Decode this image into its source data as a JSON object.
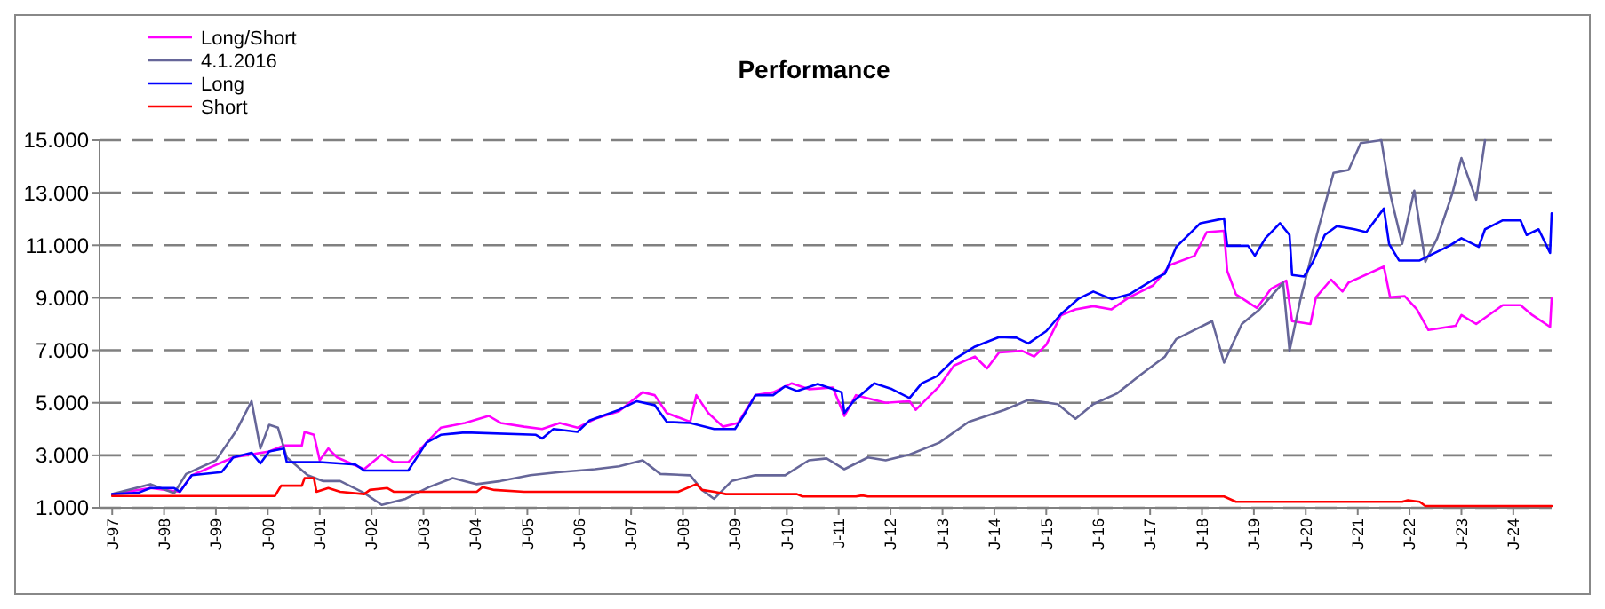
{
  "chart_data": {
    "type": "line",
    "title": "Performance",
    "legend": "top left",
    "grid": "y",
    "line_style": "solid",
    "marker": "none",
    "xlim": [
      "1996-10-04",
      "2024-09-27"
    ],
    "ylim": [
      1000,
      15000
    ],
    "yticks": [
      {
        "value": 1000,
        "label": "1.000"
      },
      {
        "value": 3000,
        "label": "3.000"
      },
      {
        "value": 5000,
        "label": "5.000"
      },
      {
        "value": 7000,
        "label": "7.000"
      },
      {
        "value": 9000,
        "label": "9.000"
      },
      {
        "value": 11000,
        "label": "11.000"
      },
      {
        "value": 13000,
        "label": "13.000"
      },
      {
        "value": 15000,
        "label": "15.000"
      }
    ],
    "xticks": [
      {
        "value": "1997-01-01",
        "label": "J-97"
      },
      {
        "value": "1998-01-01",
        "label": "J-98"
      },
      {
        "value": "1999-01-01",
        "label": "J-99"
      },
      {
        "value": "2000-01-01",
        "label": "J-00"
      },
      {
        "value": "2001-01-01",
        "label": "J-01"
      },
      {
        "value": "2002-01-01",
        "label": "J-02"
      },
      {
        "value": "2003-01-01",
        "label": "J-03"
      },
      {
        "value": "2004-01-01",
        "label": "J-04"
      },
      {
        "value": "2005-01-01",
        "label": "J-05"
      },
      {
        "value": "2006-01-01",
        "label": "J-06"
      },
      {
        "value": "2007-01-01",
        "label": "J-07"
      },
      {
        "value": "2008-01-01",
        "label": "J-08"
      },
      {
        "value": "2009-01-01",
        "label": "J-09"
      },
      {
        "value": "2010-01-01",
        "label": "J-10"
      },
      {
        "value": "2011-01-01",
        "label": "J-11"
      },
      {
        "value": "2012-01-01",
        "label": "J-12"
      },
      {
        "value": "2013-01-01",
        "label": "J-13"
      },
      {
        "value": "2014-01-01",
        "label": "J-14"
      },
      {
        "value": "2015-01-01",
        "label": "J-15"
      },
      {
        "value": "2016-01-01",
        "label": "J-16"
      },
      {
        "value": "2017-01-01",
        "label": "J-17"
      },
      {
        "value": "2018-01-01",
        "label": "J-18"
      },
      {
        "value": "2019-01-01",
        "label": "J-19"
      },
      {
        "value": "2020-01-01",
        "label": "J-20"
      },
      {
        "value": "2021-01-01",
        "label": "J-21"
      },
      {
        "value": "2022-01-01",
        "label": "J-22"
      },
      {
        "value": "2023-01-01",
        "label": "J-23"
      },
      {
        "value": "2024-01-01",
        "label": "J-24"
      }
    ],
    "series": [
      {
        "name": "Long/Short",
        "color": "#ff00ff",
        "x": [
          "1997-01-01",
          "1997-09-27",
          "1998-04-22",
          "1998-07-15",
          "1999-05-03",
          "2000-01-11",
          "2000-04-22",
          "2000-08-28",
          "2000-09-16",
          "2000-11-21",
          "2001-01-01",
          "2001-03-02",
          "2001-05-03",
          "2001-11-10",
          "2002-03-13",
          "2002-06-05",
          "2002-09-16",
          "2003-01-22",
          "2003-05-03",
          "2003-10-19",
          "2004-04-04",
          "2004-06-27",
          "2004-12-09",
          "2005-04-15",
          "2005-08-17",
          "2005-12-20",
          "2006-04-22",
          "2006-10-08",
          "2007-03-23",
          "2007-06-16",
          "2007-09-09",
          "2008-02-21",
          "2008-04-04",
          "2008-06-27",
          "2008-10-08",
          "2009-01-22",
          "2009-05-25",
          "2009-09-27",
          "2010-02-03",
          "2010-06-05",
          "2010-11-21",
          "2011-02-10",
          "2011-05-03",
          "2011-11-28",
          "2012-05-14",
          "2012-06-27",
          "2012-12-09",
          "2013-03-23",
          "2013-08-17",
          "2013-11-10",
          "2014-02-03",
          "2014-07-15",
          "2014-10-08",
          "2015-01-01",
          "2015-04-15",
          "2015-07-26",
          "2015-11-28",
          "2016-04-04",
          "2016-08-07",
          "2017-01-22",
          "2017-05-25",
          "2017-11-10",
          "2018-02-03",
          "2018-06-05",
          "2018-06-27",
          "2018-08-28",
          "2019-01-22",
          "2019-05-03",
          "2019-08-17",
          "2019-09-27",
          "2020-02-03",
          "2020-03-13",
          "2020-06-27",
          "2020-09-16",
          "2020-10-29",
          "2021-07-04",
          "2021-08-17",
          "2021-11-28",
          "2022-02-21",
          "2022-05-14",
          "2022-11-21",
          "2023-01-01",
          "2023-04-15",
          "2023-10-19",
          "2024-02-21",
          "2024-05-14",
          "2024-09-16",
          "2024-09-27"
        ],
        "values": [
          1520,
          1750,
          1610,
          2240,
          2920,
          3150,
          3370,
          3370,
          3890,
          3780,
          2810,
          3260,
          2920,
          2470,
          3030,
          2740,
          2740,
          3480,
          4050,
          4230,
          4500,
          4230,
          4090,
          4000,
          4230,
          4050,
          4390,
          4680,
          5400,
          5290,
          4610,
          4270,
          5290,
          4610,
          4090,
          4230,
          5290,
          5400,
          5740,
          5520,
          5580,
          4500,
          5290,
          5000,
          5060,
          4730,
          5630,
          6420,
          6760,
          6310,
          6920,
          6980,
          6760,
          7210,
          8340,
          8560,
          8680,
          8560,
          9020,
          9470,
          10260,
          10600,
          11500,
          11550,
          10030,
          9130,
          8610,
          9350,
          9650,
          8110,
          8000,
          9020,
          9690,
          9240,
          9580,
          10190,
          9020,
          9060,
          8560,
          7770,
          7930,
          8340,
          8000,
          8720,
          8720,
          8340,
          7890,
          8970
        ]
      },
      {
        "name": "4.1.2016",
        "color": "#666699",
        "x": [
          "1997-01-01",
          "1997-09-27",
          "1998-03-13",
          "1998-06-05",
          "1999-01-01",
          "1999-05-25",
          "1999-09-09",
          "1999-11-10",
          "2000-01-11",
          "2000-03-13",
          "2000-05-14",
          "2000-10-08",
          "2001-01-22",
          "2001-05-25",
          "2001-11-10",
          "2002-03-13",
          "2002-08-28",
          "2003-02-10",
          "2003-07-26",
          "2004-01-11",
          "2004-06-27",
          "2005-01-22",
          "2005-08-17",
          "2006-04-22",
          "2006-10-08",
          "2007-03-23",
          "2007-07-26",
          "2008-02-21",
          "2008-05-14",
          "2008-08-07",
          "2008-12-09",
          "2009-05-25",
          "2009-12-20",
          "2010-06-05",
          "2010-10-08",
          "2010-11-21",
          "2011-02-10",
          "2011-07-26",
          "2011-11-28",
          "2012-05-14",
          "2012-12-09",
          "2013-07-04",
          "2014-03-13",
          "2014-08-28",
          "2015-03-23",
          "2015-07-26",
          "2015-11-28",
          "2016-05-14",
          "2016-10-29",
          "2017-04-15",
          "2017-07-04",
          "2017-09-27",
          "2018-03-13",
          "2018-06-05",
          "2018-10-08",
          "2019-02-10",
          "2019-07-26",
          "2019-09-09",
          "2019-11-28",
          "2020-04-04",
          "2020-07-15",
          "2020-10-29",
          "2021-01-22",
          "2021-06-16",
          "2021-08-17",
          "2021-11-10",
          "2022-02-03",
          "2022-04-22",
          "2022-07-15",
          "2022-10-29",
          "2023-01-01",
          "2023-04-15",
          "2023-06-16"
        ],
        "values": [
          1520,
          1900,
          1560,
          2290,
          2810,
          3940,
          5060,
          3260,
          4160,
          4050,
          2920,
          2240,
          2020,
          2020,
          1560,
          1110,
          1340,
          1790,
          2130,
          1900,
          2020,
          2240,
          2360,
          2470,
          2580,
          2810,
          2290,
          2240,
          1680,
          1340,
          2020,
          2240,
          2240,
          2810,
          2880,
          2740,
          2470,
          2920,
          2810,
          3030,
          3480,
          4270,
          4730,
          5110,
          4950,
          4390,
          4950,
          5360,
          6080,
          6760,
          7430,
          7660,
          8110,
          6530,
          8000,
          8560,
          9580,
          6980,
          9020,
          11730,
          13760,
          13870,
          14890,
          15000,
          12970,
          11050,
          13080,
          10370,
          11270,
          12970,
          14320,
          12740,
          15000
        ]
      },
      {
        "name": "Long",
        "color": "#0000ff",
        "x": [
          "1997-01-01",
          "1997-07-04",
          "1997-09-27",
          "1998-03-13",
          "1998-04-22",
          "1998-07-15",
          "1999-02-10",
          "1999-05-03",
          "1999-09-09",
          "1999-11-10",
          "2000-01-11",
          "2000-04-22",
          "2000-05-14",
          "2001-01-01",
          "2001-09-09",
          "2001-11-10",
          "2002-09-16",
          "2003-01-22",
          "2003-05-03",
          "2003-10-19",
          "2005-03-02",
          "2005-04-15",
          "2005-07-04",
          "2005-12-20",
          "2006-03-13",
          "2006-10-08",
          "2007-02-10",
          "2007-06-16",
          "2007-09-09",
          "2008-02-21",
          "2008-08-07",
          "2009-01-01",
          "2009-03-02",
          "2009-05-25",
          "2009-09-27",
          "2009-12-20",
          "2010-03-13",
          "2010-08-07",
          "2010-11-21",
          "2011-01-22",
          "2011-02-10",
          "2011-04-15",
          "2011-09-09",
          "2012-01-11",
          "2012-05-14",
          "2012-08-07",
          "2012-11-21",
          "2013-03-23",
          "2013-08-17",
          "2014-02-03",
          "2014-06-05",
          "2014-08-28",
          "2015-01-01",
          "2015-04-15",
          "2015-08-17",
          "2015-11-28",
          "2016-04-04",
          "2016-08-07",
          "2017-01-22",
          "2017-04-15",
          "2017-07-04",
          "2017-12-20",
          "2018-06-05",
          "2018-06-27",
          "2018-11-21",
          "2019-01-08",
          "2019-03-23",
          "2019-07-04",
          "2019-09-09",
          "2019-09-27",
          "2019-12-20",
          "2020-02-21",
          "2020-05-14",
          "2020-08-07",
          "2020-12-09",
          "2021-03-02",
          "2021-07-04",
          "2021-08-10",
          "2021-10-19",
          "2022-03-13",
          "2022-10-08",
          "2023-01-01",
          "2023-05-03",
          "2023-06-16",
          "2023-10-19",
          "2024-02-21",
          "2024-04-04",
          "2024-06-27",
          "2024-09-16",
          "2024-09-27"
        ],
        "values": [
          1520,
          1570,
          1750,
          1750,
          1610,
          2240,
          2360,
          2920,
          3100,
          2690,
          3150,
          3260,
          2740,
          2740,
          2650,
          2420,
          2420,
          3480,
          3780,
          3870,
          3780,
          3640,
          4000,
          3890,
          4320,
          4730,
          5060,
          4910,
          4270,
          4230,
          4000,
          4000,
          4500,
          5290,
          5290,
          5630,
          5450,
          5720,
          5520,
          5400,
          4610,
          5060,
          5740,
          5520,
          5180,
          5740,
          6010,
          6650,
          7140,
          7500,
          7480,
          7260,
          7730,
          8380,
          8970,
          9240,
          8950,
          9130,
          9690,
          9920,
          10940,
          11840,
          12020,
          10980,
          10980,
          10600,
          11270,
          11840,
          11390,
          9870,
          9810,
          10370,
          11390,
          11730,
          11610,
          11500,
          12400,
          11050,
          10420,
          10420,
          10980,
          11270,
          10940,
          11610,
          11950,
          11950,
          11390,
          11610,
          10710,
          12220
        ]
      },
      {
        "name": "Short",
        "color": "#ff0000",
        "x": [
          "1997-01-01",
          "2000-02-21",
          "2000-04-04",
          "2000-08-28",
          "2000-09-16",
          "2000-11-21",
          "2000-12-09",
          "2001-03-02",
          "2001-05-25",
          "2001-11-10",
          "2001-12-20",
          "2002-04-22",
          "2002-06-05",
          "2004-01-11",
          "2004-02-21",
          "2004-05-14",
          "2004-12-09",
          "2007-11-28",
          "2008-04-04",
          "2008-05-14",
          "2008-08-07",
          "2008-10-29",
          "2010-03-13",
          "2010-04-22",
          "2011-05-03",
          "2011-06-16",
          "2011-07-26",
          "2018-06-05",
          "2018-08-28",
          "2021-11-10",
          "2021-12-20",
          "2022-03-13",
          "2022-04-22",
          "2024-09-27"
        ],
        "values": [
          1450,
          1450,
          1840,
          1840,
          2130,
          2130,
          1610,
          1750,
          1610,
          1520,
          1680,
          1750,
          1610,
          1610,
          1790,
          1680,
          1610,
          1610,
          1900,
          1680,
          1610,
          1520,
          1520,
          1430,
          1430,
          1470,
          1430,
          1430,
          1230,
          1230,
          1290,
          1230,
          1070,
          1070
        ]
      }
    ]
  }
}
